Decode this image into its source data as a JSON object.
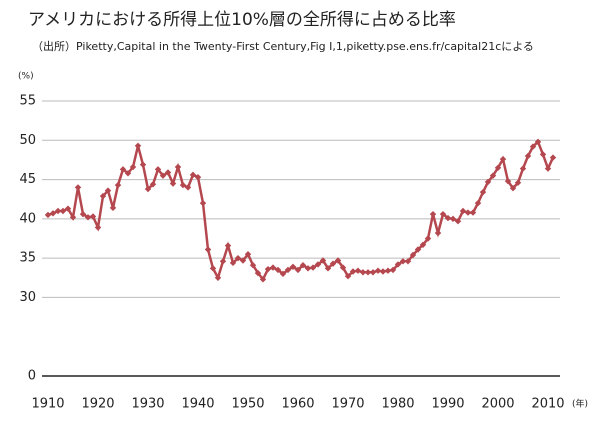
{
  "chart_data": {
    "type": "line",
    "title": "アメリカにおける所得上位10%層の全所得に占める比率",
    "subtitle": "（出所）Piketty,Capital in the Twenty-First Century,Fig Ⅰ,1,piketty.pse.ens.fr/capital21cによる",
    "y_unit": "(%)",
    "x_unit": "(年)",
    "x": [
      1910,
      1911,
      1912,
      1913,
      1914,
      1915,
      1916,
      1917,
      1918,
      1919,
      1920,
      1921,
      1922,
      1923,
      1924,
      1925,
      1926,
      1927,
      1928,
      1929,
      1930,
      1931,
      1932,
      1933,
      1934,
      1935,
      1936,
      1937,
      1938,
      1939,
      1940,
      1941,
      1942,
      1943,
      1944,
      1945,
      1946,
      1947,
      1948,
      1949,
      1950,
      1951,
      1952,
      1953,
      1954,
      1955,
      1956,
      1957,
      1958,
      1959,
      1960,
      1961,
      1962,
      1963,
      1964,
      1965,
      1966,
      1967,
      1968,
      1969,
      1970,
      1971,
      1972,
      1973,
      1974,
      1975,
      1976,
      1977,
      1978,
      1979,
      1980,
      1981,
      1982,
      1983,
      1984,
      1985,
      1986,
      1987,
      1988,
      1989,
      1990,
      1991,
      1992,
      1993,
      1994,
      1995,
      1996,
      1997,
      1998,
      1999,
      2000,
      2001,
      2002,
      2003,
      2004,
      2005,
      2006,
      2007,
      2008,
      2009,
      2010,
      2011
    ],
    "series": [
      {
        "name": "top10",
        "color": "#b5474f",
        "values": [
          40.5,
          40.7,
          41.0,
          41.0,
          41.3,
          40.2,
          44.0,
          40.6,
          40.2,
          40.3,
          38.9,
          42.9,
          43.6,
          41.4,
          44.3,
          46.3,
          45.8,
          46.6,
          49.3,
          46.9,
          43.8,
          44.4,
          46.3,
          45.5,
          45.9,
          44.5,
          46.6,
          44.3,
          44.0,
          45.6,
          45.3,
          42.0,
          36.1,
          33.7,
          32.5,
          34.6,
          36.6,
          34.4,
          35.0,
          34.7,
          35.5,
          34.1,
          33.1,
          32.3,
          33.6,
          33.8,
          33.5,
          33.0,
          33.5,
          33.9,
          33.5,
          34.1,
          33.7,
          33.8,
          34.2,
          34.7,
          33.7,
          34.3,
          34.7,
          33.8,
          32.7,
          33.3,
          33.4,
          33.2,
          33.2,
          33.2,
          33.4,
          33.3,
          33.4,
          33.5,
          34.2,
          34.6,
          34.6,
          35.4,
          36.1,
          36.7,
          37.5,
          40.6,
          38.2,
          40.6,
          40.1,
          40.0,
          39.7,
          41.0,
          40.8,
          40.8,
          42.0,
          43.4,
          44.7,
          45.5,
          46.5,
          47.6,
          44.8,
          43.9,
          44.6,
          46.4,
          48.0,
          49.2,
          49.8,
          48.2,
          46.4,
          47.8
        ]
      }
    ],
    "xlim": [
      1910,
      2010
    ],
    "xticks": [
      1910,
      1920,
      1930,
      1940,
      1950,
      1960,
      1970,
      1980,
      1990,
      2000,
      2010
    ],
    "ylim": [
      0,
      55
    ],
    "yticks": [
      0,
      30,
      35,
      40,
      45,
      50,
      55
    ],
    "grid": true
  }
}
